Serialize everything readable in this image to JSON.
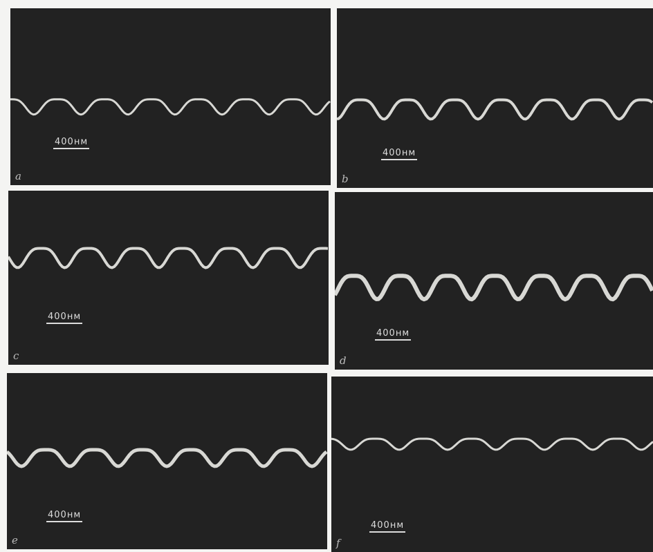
{
  "panels": [
    {
      "label": "a",
      "scale": "400нм"
    },
    {
      "label": "b",
      "scale": "400нм"
    },
    {
      "label": "c",
      "scale": "400нм"
    },
    {
      "label": "d",
      "scale": "400нм"
    },
    {
      "label": "e",
      "scale": "400нм"
    },
    {
      "label": "f",
      "scale": "400нм"
    }
  ]
}
